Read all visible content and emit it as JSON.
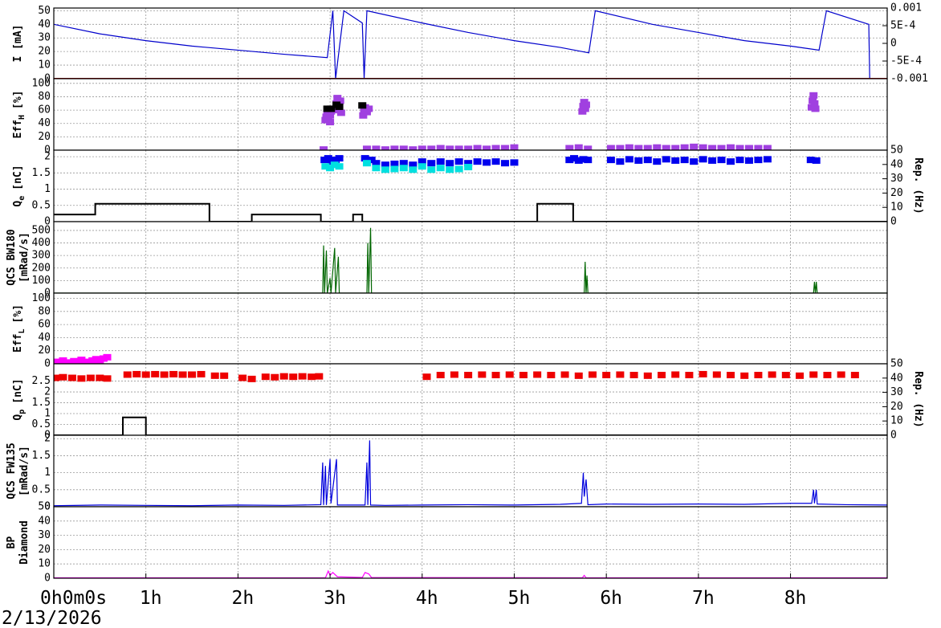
{
  "date": "2/13/2026",
  "chart_data": [
    {
      "type": "line",
      "ylabel": [
        "I [mA]"
      ],
      "ylim": [
        0,
        52
      ],
      "yticks": [
        0,
        10,
        20,
        30,
        40,
        50
      ],
      "y2lim": [
        -0.001,
        0.001
      ],
      "y2ticks": [
        0.001,
        {
          "value": 0.0005,
          "label": "5E-4"
        },
        0,
        {
          "value": -0.0005,
          "label": "-5E-4"
        },
        -0.001
      ],
      "series": [
        {
          "color": "#0000cc",
          "x": [
            0,
            0.5,
            1,
            1.5,
            2,
            2.5,
            2.97,
            3.03,
            3.06,
            3.15,
            3.35,
            3.37,
            3.4,
            4,
            4.5,
            5,
            5.5,
            5.81,
            5.88,
            6.5,
            7,
            7.5,
            8,
            8.31,
            8.39,
            8.85,
            8.86
          ],
          "values": [
            40,
            33,
            28,
            24,
            21,
            18,
            15.5,
            50,
            0,
            50,
            41,
            0,
            50,
            41,
            34,
            28,
            23,
            19,
            50,
            40,
            34,
            28,
            24,
            21,
            50,
            40,
            0
          ]
        },
        {
          "color": "#cc0000",
          "axis": "y2",
          "x": [
            0,
            9.05
          ],
          "values": [
            -0.001,
            -0.001
          ]
        }
      ]
    },
    {
      "type": "scatter",
      "ylabel_parts": [
        "Eff",
        "H",
        "[%]"
      ],
      "ylim": [
        0,
        107
      ],
      "yticks": [
        0,
        20,
        40,
        60,
        80,
        100
      ],
      "series": [
        {
          "color": "#a040e0",
          "x": [
            2.95,
            2.96,
            2.97,
            2.98,
            2.99,
            3.0,
            3.0,
            3.01,
            3.06,
            3.07,
            3.08,
            3.09,
            3.1,
            3.11,
            3.12,
            3.36,
            3.37,
            3.38,
            3.4,
            3.42,
            5.74,
            5.75,
            5.76,
            5.77,
            5.78,
            8.23,
            8.24,
            8.25,
            8.26,
            8.27
          ],
          "values": [
            45,
            50,
            55,
            48,
            60,
            52,
            42,
            58,
            62,
            70,
            78,
            60,
            66,
            74,
            56,
            52,
            60,
            64,
            57,
            62,
            58,
            66,
            72,
            62,
            68,
            64,
            74,
            82,
            70,
            62
          ]
        },
        {
          "color": "#a040e0",
          "x": [
            2.93,
            3.4,
            3.5,
            3.6,
            3.7,
            3.8,
            3.9,
            4.0,
            4.1,
            4.2,
            4.3,
            4.4,
            4.5,
            4.6,
            4.7,
            4.8,
            4.9,
            5.0,
            5.6,
            5.7,
            5.8,
            6.05,
            6.15,
            6.25,
            6.35,
            6.45,
            6.55,
            6.65,
            6.75,
            6.85,
            6.95,
            7.05,
            7.15,
            7.25,
            7.35,
            7.45,
            7.55,
            7.65,
            7.75
          ],
          "values": [
            1,
            2,
            2,
            1,
            2,
            2,
            1,
            2,
            2,
            3,
            2,
            2,
            2,
            3,
            2,
            3,
            3,
            4,
            3,
            4,
            2,
            3,
            3,
            4,
            3,
            3,
            4,
            3,
            3,
            4,
            5,
            4,
            3,
            3,
            4,
            3,
            3,
            3,
            3
          ]
        },
        {
          "color": "#000000",
          "x": [
            2.97,
            3.01,
            3.07,
            3.1,
            3.35
          ],
          "values": [
            62,
            62,
            68,
            65,
            67
          ]
        }
      ]
    },
    {
      "type": "scatter",
      "ylabel_parts": [
        "Q",
        "e",
        "[nC]"
      ],
      "ylim": [
        0,
        2.2
      ],
      "yticks": [
        0,
        0.5,
        1,
        1.5,
        2
      ],
      "y2label": "Rep. (Hz)",
      "y2lim": [
        0,
        50
      ],
      "y2ticks": [
        0,
        10,
        20,
        30,
        40,
        50
      ],
      "series": [
        {
          "color": "#0000ee",
          "x": [
            2.94,
            2.98,
            3.02,
            3.06,
            3.1,
            3.38,
            3.45,
            3.5,
            3.6,
            3.7,
            3.8,
            3.9,
            4.0,
            4.1,
            4.2,
            4.3,
            4.4,
            4.5,
            4.6,
            4.7,
            4.8,
            4.9,
            5.0,
            5.6,
            5.65,
            5.7,
            5.75,
            5.8,
            6.05,
            6.15,
            6.25,
            6.35,
            6.45,
            6.55,
            6.65,
            6.75,
            6.85,
            6.95,
            7.05,
            7.15,
            7.25,
            7.35,
            7.45,
            7.55,
            7.65,
            7.75,
            8.22,
            8.28
          ],
          "values": [
            1.9,
            1.95,
            1.85,
            1.9,
            1.95,
            1.95,
            1.9,
            1.8,
            1.75,
            1.78,
            1.8,
            1.75,
            1.85,
            1.8,
            1.85,
            1.8,
            1.85,
            1.8,
            1.85,
            1.82,
            1.85,
            1.8,
            1.82,
            1.9,
            1.95,
            1.88,
            1.92,
            1.9,
            1.9,
            1.85,
            1.92,
            1.88,
            1.9,
            1.85,
            1.92,
            1.88,
            1.9,
            1.85,
            1.92,
            1.88,
            1.9,
            1.85,
            1.9,
            1.88,
            1.9,
            1.92,
            1.9,
            1.88
          ]
        },
        {
          "color": "#00e0e0",
          "x": [
            2.95,
            3.0,
            3.05,
            3.1,
            3.4,
            3.5,
            3.6,
            3.7,
            3.8,
            3.9,
            4.0,
            4.1,
            4.2,
            4.3,
            4.4,
            4.5
          ],
          "values": [
            1.7,
            1.65,
            1.75,
            1.7,
            1.8,
            1.65,
            1.6,
            1.62,
            1.65,
            1.6,
            1.7,
            1.6,
            1.65,
            1.6,
            1.62,
            1.68
          ]
        },
        {
          "color": "#000000",
          "type": "line",
          "axis": "y2",
          "x": [
            0,
            0.45,
            0.45,
            1.69,
            1.69,
            2.15,
            2.15,
            2.9,
            2.9,
            3.25,
            3.25,
            3.35,
            3.35,
            5.25,
            5.25,
            5.64,
            5.64,
            9.05
          ],
          "values": [
            5,
            5,
            12.5,
            12.5,
            0,
            0,
            5,
            5,
            0,
            0,
            5,
            5,
            0,
            0,
            12.5,
            12.5,
            0,
            0
          ]
        }
      ]
    },
    {
      "type": "line",
      "ylabel": [
        "QCS BW180",
        "[mRad/s]"
      ],
      "ylim": [
        0,
        570
      ],
      "yticks": [
        0,
        100,
        200,
        300,
        400,
        500
      ],
      "series": [
        {
          "color": "#006600",
          "x": [
            0,
            2.92,
            2.93,
            2.94,
            2.96,
            2.97,
            3.0,
            3.01,
            3.05,
            3.06,
            3.09,
            3.1,
            3.4,
            3.41,
            3.42,
            3.44,
            3.45,
            5.76,
            5.77,
            5.78,
            5.79,
            5.8,
            8.25,
            8.26,
            8.27,
            8.28,
            8.29,
            9.05
          ],
          "values": [
            0,
            0,
            380,
            0,
            340,
            0,
            120,
            0,
            360,
            0,
            290,
            0,
            0,
            400,
            0,
            520,
            0,
            0,
            250,
            0,
            140,
            0,
            0,
            90,
            0,
            90,
            0,
            0
          ]
        }
      ]
    },
    {
      "type": "scatter",
      "ylabel_parts": [
        "Eff",
        "L",
        "[%]"
      ],
      "ylim": [
        0,
        108
      ],
      "yticks": [
        0,
        20,
        40,
        60,
        80,
        100
      ],
      "series": [
        {
          "color": "#ff00ff",
          "x": [
            0.02,
            0.06,
            0.1,
            0.14,
            0.18,
            0.22,
            0.26,
            0.3,
            0.34,
            0.38,
            0.42,
            0.46,
            0.5,
            0.54,
            0.58
          ],
          "values": [
            3,
            1,
            5,
            2,
            0,
            4,
            2,
            6,
            3,
            1,
            5,
            7,
            3,
            8,
            10
          ]
        }
      ]
    },
    {
      "type": "scatter",
      "ylabel_parts": [
        "Q",
        "p",
        "[nC]"
      ],
      "ylim": [
        0,
        3.3
      ],
      "yticks": [
        0,
        0.5,
        1,
        1.5,
        2,
        2.5
      ],
      "y2label": "Rep. (Hz)",
      "y2lim": [
        0,
        50
      ],
      "y2ticks": [
        0,
        10,
        20,
        30,
        40,
        50
      ],
      "series": [
        {
          "color": "#ee0000",
          "x": [
            0.02,
            0.1,
            0.2,
            0.3,
            0.4,
            0.5,
            0.58,
            0.8,
            0.9,
            1.0,
            1.1,
            1.2,
            1.3,
            1.4,
            1.5,
            1.6,
            1.75,
            1.85,
            2.05,
            2.15,
            2.3,
            2.4,
            2.5,
            2.6,
            2.7,
            2.8,
            2.88,
            4.05,
            4.2,
            4.35,
            4.5,
            4.65,
            4.8,
            4.95,
            5.1,
            5.25,
            5.4,
            5.55,
            5.7,
            5.85,
            6.0,
            6.15,
            6.3,
            6.45,
            6.6,
            6.75,
            6.9,
            7.05,
            7.2,
            7.35,
            7.5,
            7.65,
            7.8,
            7.95,
            8.1,
            8.25,
            8.4,
            8.55,
            8.7
          ],
          "values": [
            2.65,
            2.68,
            2.65,
            2.62,
            2.65,
            2.65,
            2.62,
            2.8,
            2.82,
            2.8,
            2.82,
            2.8,
            2.82,
            2.8,
            2.8,
            2.82,
            2.75,
            2.75,
            2.65,
            2.6,
            2.7,
            2.68,
            2.72,
            2.7,
            2.72,
            2.7,
            2.72,
            2.7,
            2.78,
            2.8,
            2.78,
            2.8,
            2.78,
            2.8,
            2.78,
            2.8,
            2.78,
            2.8,
            2.75,
            2.8,
            2.78,
            2.8,
            2.78,
            2.75,
            2.78,
            2.8,
            2.78,
            2.82,
            2.8,
            2.78,
            2.75,
            2.78,
            2.8,
            2.78,
            2.75,
            2.8,
            2.78,
            2.8,
            2.78
          ]
        },
        {
          "color": "#000000",
          "type": "line",
          "axis": "y2",
          "x": [
            0,
            0.75,
            0.75,
            1.0,
            1.0,
            9.05
          ],
          "values": [
            0,
            0,
            12.5,
            12.5,
            0,
            0
          ]
        }
      ]
    },
    {
      "type": "line",
      "ylabel": [
        "QCS FW135",
        "[mRad/s]"
      ],
      "ylim": [
        0,
        2.1
      ],
      "yticks": [
        0,
        0.5,
        1,
        1.5,
        2
      ],
      "series": [
        {
          "color": "#0000dd",
          "x": [
            0,
            0.5,
            1.0,
            1.5,
            2.0,
            2.5,
            2.9,
            2.92,
            2.93,
            2.95,
            2.96,
            3.0,
            3.01,
            3.07,
            3.08,
            3.38,
            3.4,
            3.41,
            3.43,
            3.44,
            3.6,
            4.0,
            4.5,
            5.0,
            5.5,
            5.73,
            5.75,
            5.76,
            5.78,
            5.8,
            6.0,
            6.5,
            7.0,
            7.5,
            8.0,
            8.23,
            8.25,
            8.26,
            8.28,
            8.29,
            8.6,
            9.05
          ],
          "values": [
            0.03,
            0.05,
            0.04,
            0.03,
            0.05,
            0.04,
            0.06,
            1.3,
            0.05,
            1.2,
            0.05,
            1.4,
            0.1,
            1.4,
            0.05,
            0.05,
            1.3,
            0.05,
            1.95,
            0.05,
            0.04,
            0.05,
            0.06,
            0.05,
            0.07,
            0.1,
            1.0,
            0.3,
            0.8,
            0.06,
            0.08,
            0.07,
            0.08,
            0.07,
            0.1,
            0.1,
            0.5,
            0.1,
            0.5,
            0.08,
            0.06,
            0.05
          ]
        }
      ]
    },
    {
      "type": "line",
      "ylabel": [
        "BP",
        "Diamond"
      ],
      "ylim": [
        0,
        50
      ],
      "yticks": [
        0,
        10,
        20,
        30,
        40,
        50
      ],
      "xlim": [
        0,
        9.05
      ],
      "xticks": [
        {
          "value": 0,
          "label": "0h0m0s"
        },
        {
          "value": 1,
          "label": "1h"
        },
        {
          "value": 2,
          "label": "2h"
        },
        {
          "value": 3,
          "label": "3h"
        },
        {
          "value": 4,
          "label": "4h"
        },
        {
          "value": 5,
          "label": "5h"
        },
        {
          "value": 6,
          "label": "6h"
        },
        {
          "value": 7,
          "label": "7h"
        },
        {
          "value": 8,
          "label": "8h"
        }
      ],
      "series": [
        {
          "color": "#ff00ff",
          "x": [
            0,
            2.95,
            2.98,
            3.0,
            3.03,
            3.08,
            3.35,
            3.38,
            3.42,
            3.45,
            5.74,
            5.76,
            5.78,
            9.05
          ],
          "values": [
            0.3,
            0.3,
            5,
            2,
            4,
            1,
            0.5,
            4,
            3,
            0.5,
            0.3,
            2,
            0.3,
            0.3
          ]
        }
      ]
    }
  ]
}
